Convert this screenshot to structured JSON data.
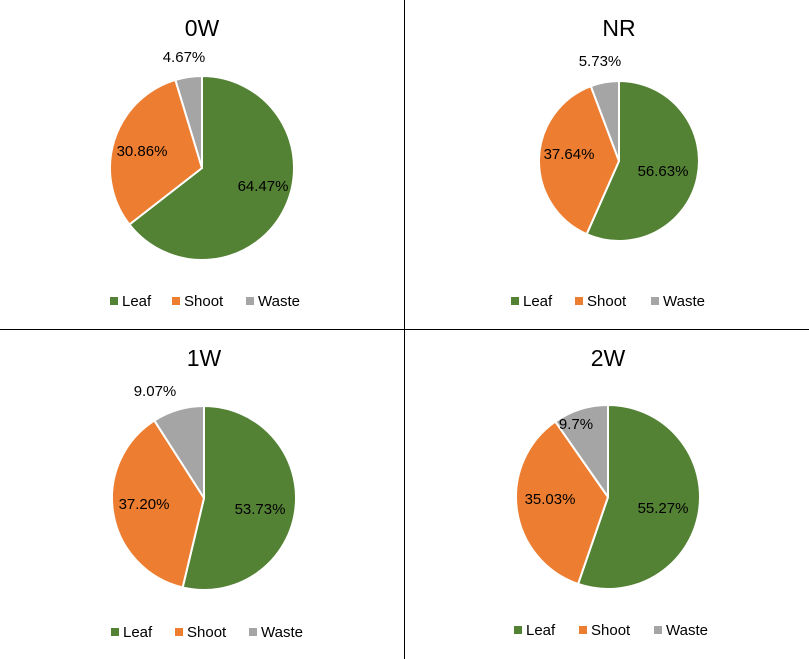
{
  "colors": {
    "leaf": "#548235",
    "shoot": "#ED7D31",
    "waste": "#A5A5A5"
  },
  "chart_data": [
    {
      "type": "pie",
      "title": "0W",
      "legend_position": "bottom",
      "categories": [
        "Leaf",
        "Shoot",
        "Waste"
      ],
      "values": [
        64.47,
        30.86,
        4.67
      ],
      "labels": [
        "64.47%",
        "30.86%",
        "4.67%"
      ]
    },
    {
      "type": "pie",
      "title": "NR",
      "legend_position": "bottom",
      "categories": [
        "Leaf",
        "Shoot",
        "Waste"
      ],
      "values": [
        56.63,
        37.64,
        5.73
      ],
      "labels": [
        "56.63%",
        "37.64%",
        "5.73%"
      ]
    },
    {
      "type": "pie",
      "title": "1W",
      "legend_position": "bottom",
      "categories": [
        "Leaf",
        "Shoot",
        "Waste"
      ],
      "values": [
        53.73,
        37.2,
        9.07
      ],
      "labels": [
        "53.73%",
        "37.20%",
        "9.07%"
      ]
    },
    {
      "type": "pie",
      "title": "2W",
      "legend_position": "bottom",
      "categories": [
        "Leaf",
        "Shoot",
        "Waste"
      ],
      "values": [
        55.27,
        35.03,
        9.7
      ],
      "labels": [
        "55.27%",
        "35.03%",
        "9.7%"
      ]
    }
  ]
}
